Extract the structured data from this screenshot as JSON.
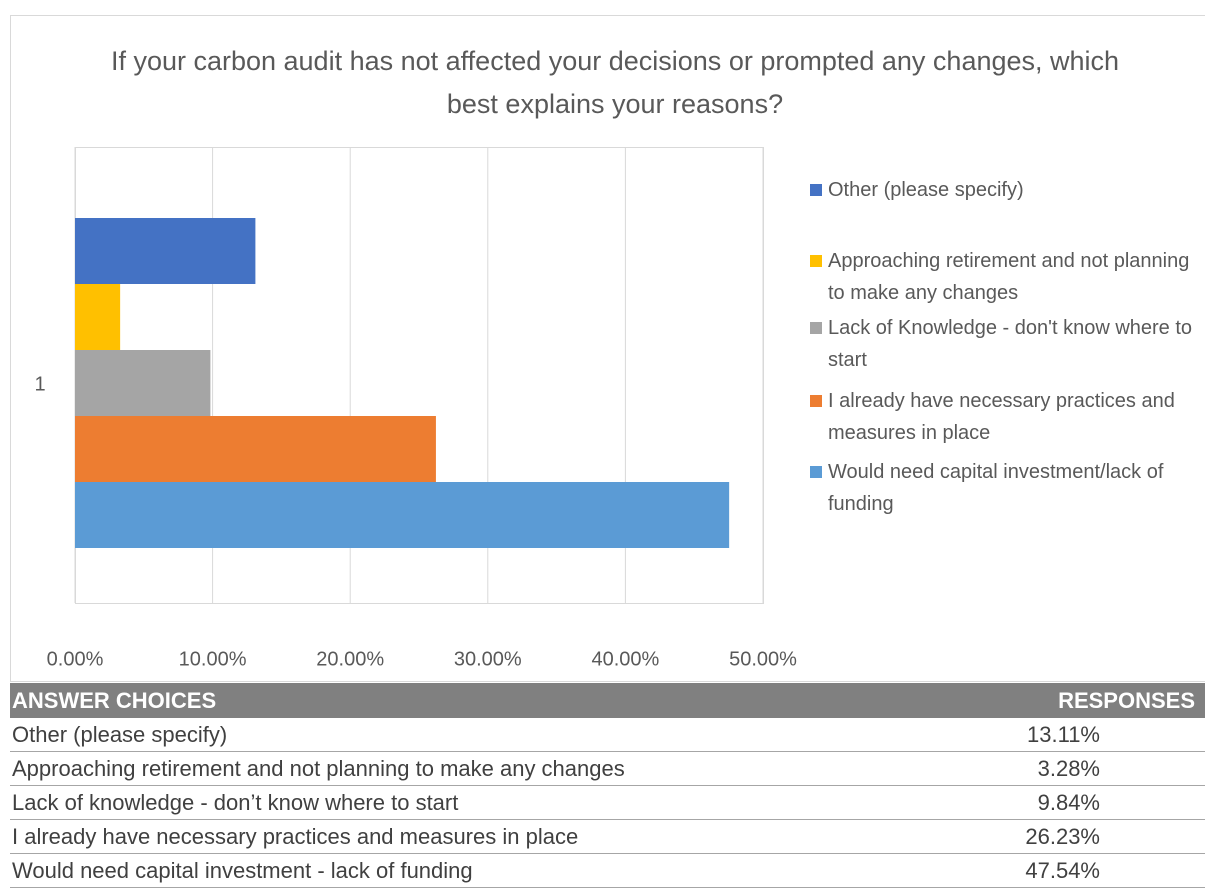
{
  "chart_data": {
    "type": "bar",
    "orientation": "horizontal",
    "title": "If your carbon audit has not affected your decisions or prompted any changes, which best explains your reasons?",
    "categories": [
      "1"
    ],
    "series": [
      {
        "name": "Other (please specify)",
        "color": "#4472c4",
        "values": [
          13.11
        ]
      },
      {
        "name": "Approaching retirement and not planning to make any changes",
        "color": "#ffc000",
        "values": [
          3.28
        ]
      },
      {
        "name": "Lack of Knowledge - don't know where to start",
        "color": "#a5a5a5",
        "values": [
          9.84
        ]
      },
      {
        "name": "I already have necessary practices and measures in place",
        "color": "#ed7d31",
        "values": [
          26.23
        ]
      },
      {
        "name": "Would need capital investment/lack of funding",
        "color": "#5b9bd5",
        "values": [
          47.54
        ]
      }
    ],
    "xlim": [
      0,
      50
    ],
    "xticks": [
      {
        "value": 0,
        "label": "0.00%"
      },
      {
        "value": 10,
        "label": "10.00%"
      },
      {
        "value": 20,
        "label": "20.00%"
      },
      {
        "value": 30,
        "label": "30.00%"
      },
      {
        "value": 40,
        "label": "40.00%"
      },
      {
        "value": 50,
        "label": "50.00%"
      }
    ],
    "grid": true,
    "legend": "right"
  },
  "table": {
    "header": [
      "ANSWER CHOICES",
      "RESPONSES"
    ],
    "rows": [
      [
        "Other (please specify)",
        "13.11%"
      ],
      [
        "Approaching retirement and not planning to make any changes",
        "3.28%"
      ],
      [
        "Lack of knowledge - don’t know where to start",
        "9.84%"
      ],
      [
        "I already have necessary practices and measures in place",
        "26.23%"
      ],
      [
        "Would need capital investment - lack of funding",
        "47.54%"
      ]
    ]
  }
}
